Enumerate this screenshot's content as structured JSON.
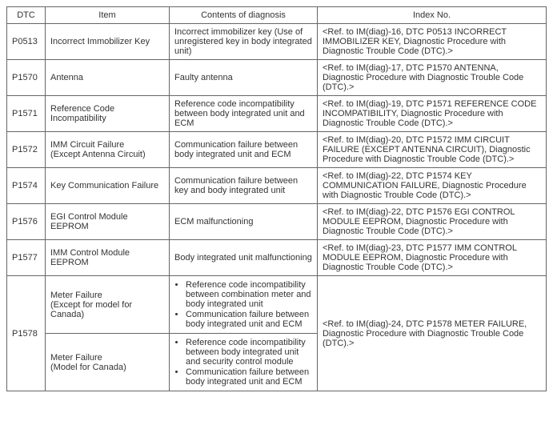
{
  "columns": [
    "DTC",
    "Item",
    "Contents of diagnosis",
    "Index No."
  ],
  "rows": [
    {
      "dtc": "P0513",
      "item": "Incorrect Immobilizer Key",
      "diag": "Incorrect immobilizer key (Use of unregistered key in body integrated unit)",
      "index": "<Ref. to IM(diag)-16, DTC P0513 INCORRECT IMMOBILIZER KEY, Diagnostic Procedure with Diagnostic Trouble Code (DTC).>"
    },
    {
      "dtc": "P1570",
      "item": "Antenna",
      "diag": "Faulty antenna",
      "index": "<Ref. to IM(diag)-17, DTC P1570 ANTENNA, Diagnostic Procedure with Diagnostic Trouble Code (DTC).>"
    },
    {
      "dtc": "P1571",
      "item": "Reference Code Incompatibility",
      "diag": "Reference code incompatibility between body integrated unit and ECM",
      "index": "<Ref. to IM(diag)-19, DTC P1571 REFERENCE CODE INCOMPATIBILITY, Diagnostic Procedure with Diagnostic Trouble Code (DTC).>"
    },
    {
      "dtc": "P1572",
      "item": "IMM Circuit Failure\n(Except Antenna Circuit)",
      "diag": "Communication failure between body integrated unit and ECM",
      "index": "<Ref. to IM(diag)-20, DTC P1572 IMM CIRCUIT FAILURE (EXCEPT ANTENNA CIRCUIT), Diagnostic Procedure with Diagnostic Trouble Code (DTC).>"
    },
    {
      "dtc": "P1574",
      "item": "Key Communication Failure",
      "diag": "Communication failure between key and body integrated unit",
      "index": "<Ref. to IM(diag)-22, DTC P1574 KEY COMMUNICATION FAILURE, Diagnostic Procedure with Diagnostic Trouble Code (DTC).>"
    },
    {
      "dtc": "P1576",
      "item": "EGI Control Module EEPROM",
      "diag": "ECM malfunctioning",
      "index": "<Ref. to IM(diag)-22, DTC P1576 EGI CONTROL MODULE EEPROM, Diagnostic Procedure with Diagnostic Trouble Code (DTC).>"
    },
    {
      "dtc": "P1577",
      "item": "IMM Control Module EEPROM",
      "diag": "Body integrated unit malfunctioning",
      "index": "<Ref. to IM(diag)-23, DTC P1577 IMM CONTROL MODULE EEPROM, Diagnostic Procedure with Diagnostic Trouble Code (DTC).>"
    }
  ],
  "p1578": {
    "dtc": "P1578",
    "item_a": "Meter Failure\n(Except for model for Canada)",
    "diag_a_bullets": [
      "Reference code incompatibility between combination meter and body integrated unit",
      "Communication failure between body integrated unit and ECM"
    ],
    "item_b": "Meter Failure\n(Model for Canada)",
    "diag_b_bullets": [
      "Reference code incompatibility between body integrated unit and security control module",
      "Communication failure between body integrated unit and ECM"
    ],
    "index": "<Ref. to IM(diag)-24, DTC P1578 METER FAILURE, Diagnostic Procedure with Diagnostic Trouble Code (DTC).>"
  }
}
